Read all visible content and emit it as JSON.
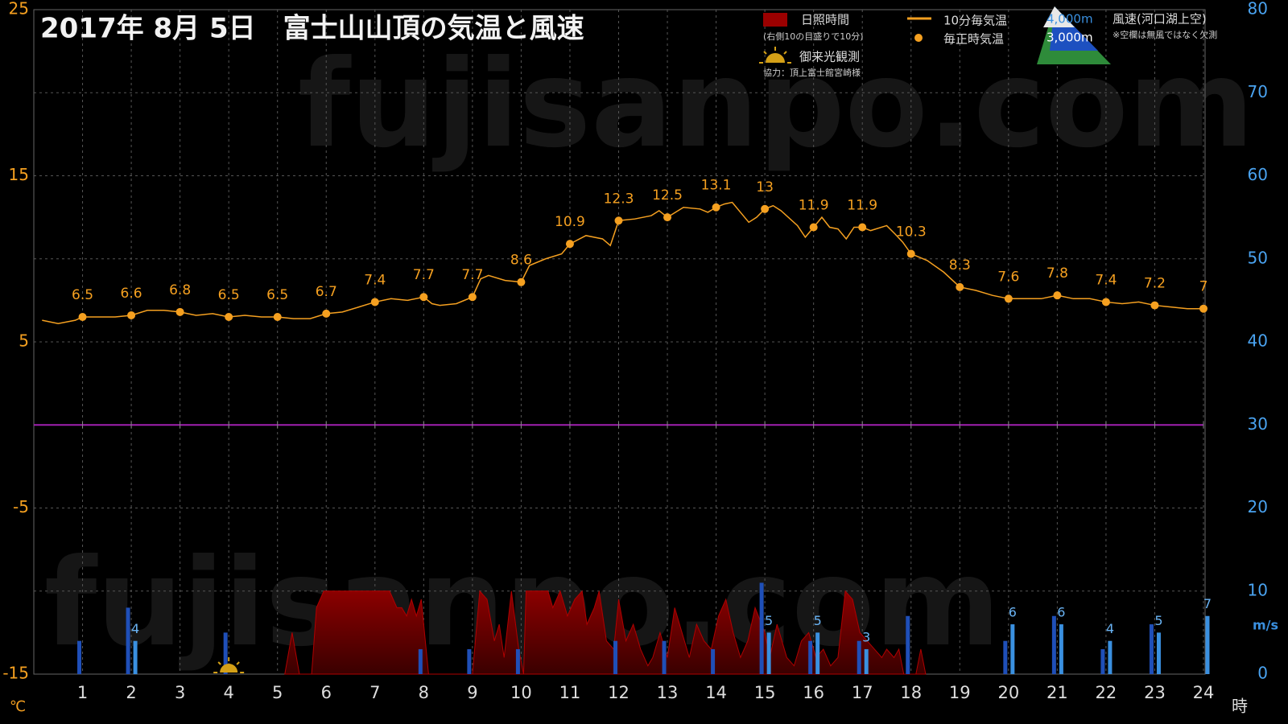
{
  "chart_data": {
    "type": "combo",
    "title": "2017年  8月  5日　富士山山頂の気温と風速",
    "watermark": "fujisanpo.com",
    "xlim": [
      0,
      24
    ],
    "xticks": [
      1,
      2,
      3,
      4,
      5,
      6,
      7,
      8,
      9,
      10,
      11,
      12,
      13,
      14,
      15,
      16,
      17,
      18,
      19,
      20,
      21,
      22,
      23,
      24
    ],
    "xlabel": "時",
    "ylabel": "℃",
    "ylim": [
      -15,
      25
    ],
    "yticks": [
      -15,
      -5,
      5,
      15,
      25
    ],
    "y2label": "m/s",
    "y2lim": [
      0,
      80
    ],
    "y2ticks": [
      0,
      10,
      20,
      30,
      40,
      50,
      60,
      70,
      80
    ],
    "grid": true,
    "hline": {
      "value": 0,
      "color": "#a020b0"
    },
    "sunshine_note": "(右側10の目盛りで10分)",
    "wind_title": "風速(河口湖上空)",
    "wind_note": "※空欄は無風ではなく欠測",
    "credit": "協力：頂上富士館宮崎様",
    "sunrise": {
      "label": "御来光観測",
      "x": 4
    },
    "series": [
      {
        "name": "日照時間",
        "kind": "area",
        "axis": "y2",
        "color": "#8b0000",
        "x": [
          5.15,
          5.3,
          5.45,
          5.7,
          5.8,
          5.95,
          7.3,
          7.45,
          7.55,
          7.65,
          7.75,
          7.85,
          7.95,
          8.1,
          9.0,
          9.15,
          9.3,
          9.45,
          9.55,
          9.65,
          9.8,
          9.95,
          10.05,
          10.1,
          10.55,
          10.65,
          10.8,
          10.95,
          11.1,
          11.25,
          11.35,
          11.5,
          11.6,
          11.75,
          11.9,
          12.0,
          12.15,
          12.3,
          12.45,
          12.6,
          12.7,
          12.85,
          13.0,
          13.15,
          13.3,
          13.45,
          13.6,
          13.75,
          13.9,
          14.05,
          14.2,
          14.35,
          14.5,
          14.65,
          14.8,
          15.0,
          15.1,
          15.25,
          15.45,
          15.6,
          15.75,
          15.9,
          16.05,
          16.2,
          16.35,
          16.5,
          16.65,
          16.8,
          16.95,
          17.1,
          17.25,
          17.4,
          17.5,
          17.65,
          17.75,
          17.85,
          18.1,
          18.2,
          18.3
        ],
        "values": [
          0,
          5,
          0,
          0,
          8,
          10,
          10,
          8,
          8,
          7,
          9,
          7,
          9,
          0,
          0,
          10,
          9,
          4,
          6,
          2,
          10,
          3,
          0,
          10,
          10,
          8,
          10,
          7,
          9,
          10,
          6,
          8,
          10,
          4,
          3,
          9,
          4,
          6,
          3,
          1,
          2,
          5,
          2,
          8,
          5,
          2,
          6,
          4,
          3,
          7,
          9,
          5,
          2,
          4,
          8,
          5,
          2,
          6,
          2,
          1,
          4,
          5,
          2,
          3,
          1,
          2,
          10,
          9,
          5,
          4,
          3,
          2,
          3,
          2,
          3,
          0,
          0,
          3,
          0
        ]
      },
      {
        "name": "10分毎気温",
        "kind": "line",
        "color": "#f5a020",
        "x": [
          0.17,
          0.5,
          0.85,
          1,
          1.33,
          1.67,
          2,
          2.33,
          2.67,
          3,
          3.33,
          3.67,
          4,
          4.33,
          4.67,
          5,
          5.33,
          5.67,
          6,
          6.33,
          6.67,
          7,
          7.33,
          7.67,
          8,
          8.17,
          8.33,
          8.67,
          9,
          9.17,
          9.33,
          9.67,
          10,
          10.17,
          10.5,
          10.83,
          11,
          11.33,
          11.67,
          11.83,
          12,
          12.33,
          12.67,
          12.83,
          13,
          13.33,
          13.67,
          13.83,
          14,
          14.17,
          14.33,
          14.5,
          14.67,
          14.83,
          15,
          15.17,
          15.33,
          15.67,
          15.83,
          16,
          16.17,
          16.33,
          16.5,
          16.67,
          16.83,
          17,
          17.17,
          17.5,
          17.67,
          17.83,
          18,
          18.33,
          18.67,
          19,
          19.33,
          19.67,
          20,
          20.33,
          20.67,
          21,
          21.33,
          21.67,
          22,
          22.33,
          22.67,
          23,
          23.33,
          23.67,
          24
        ],
        "values": [
          6.3,
          6.1,
          6.3,
          6.5,
          6.5,
          6.5,
          6.6,
          6.9,
          6.9,
          6.8,
          6.6,
          6.7,
          6.5,
          6.6,
          6.5,
          6.5,
          6.4,
          6.4,
          6.7,
          6.8,
          7.1,
          7.4,
          7.6,
          7.5,
          7.7,
          7.3,
          7.2,
          7.3,
          7.7,
          8.8,
          9.0,
          8.7,
          8.6,
          9.6,
          10.0,
          10.3,
          10.9,
          11.4,
          11.2,
          10.8,
          12.3,
          12.4,
          12.6,
          12.9,
          12.5,
          13.1,
          13.0,
          12.8,
          13.1,
          13.3,
          13.4,
          12.8,
          12.2,
          12.5,
          13.0,
          13.2,
          12.9,
          12.0,
          11.3,
          11.9,
          12.5,
          11.9,
          11.8,
          11.2,
          11.9,
          11.9,
          11.7,
          12.0,
          11.5,
          11.0,
          10.3,
          9.9,
          9.2,
          8.3,
          8.1,
          7.8,
          7.6,
          7.6,
          7.6,
          7.8,
          7.6,
          7.6,
          7.4,
          7.3,
          7.4,
          7.2,
          7.1,
          7.0,
          7.0
        ]
      },
      {
        "name": "毎正時気温",
        "kind": "points",
        "color": "#f5a020",
        "x": [
          1,
          2,
          3,
          4,
          5,
          6,
          7,
          8,
          9,
          10,
          11,
          12,
          13,
          14,
          15,
          16,
          17,
          18,
          19,
          20,
          21,
          22,
          23,
          24
        ],
        "values": [
          6.5,
          6.6,
          6.8,
          6.5,
          6.5,
          6.7,
          7.4,
          7.7,
          7.7,
          8.6,
          10.9,
          12.3,
          12.5,
          13.1,
          13,
          11.9,
          11.9,
          10.3,
          8.3,
          7.6,
          7.8,
          7.4,
          7.2,
          7
        ]
      },
      {
        "name": "4,000m",
        "kind": "bar",
        "axis": "y2",
        "color": "#1f4fb8",
        "x": [
          1,
          2,
          3,
          4,
          5,
          6,
          7,
          8,
          9,
          10,
          11,
          12,
          13,
          14,
          15,
          16,
          17,
          18,
          19,
          20,
          21,
          22,
          23,
          24
        ],
        "values": [
          4,
          8,
          null,
          5,
          null,
          null,
          null,
          3,
          3,
          3,
          null,
          4,
          4,
          3,
          11,
          4,
          4,
          7,
          null,
          4,
          7,
          3,
          6,
          null
        ]
      },
      {
        "name": "3,000m",
        "kind": "bar",
        "axis": "y2",
        "color": "#3a90e0",
        "x": [
          1,
          2,
          3,
          4,
          5,
          6,
          7,
          8,
          9,
          10,
          11,
          12,
          13,
          14,
          15,
          16,
          17,
          18,
          19,
          20,
          21,
          22,
          23,
          24
        ],
        "values": [
          null,
          4,
          null,
          null,
          null,
          null,
          null,
          null,
          null,
          null,
          null,
          null,
          null,
          null,
          5,
          5,
          3,
          null,
          null,
          6,
          6,
          4,
          5,
          7
        ]
      }
    ]
  }
}
